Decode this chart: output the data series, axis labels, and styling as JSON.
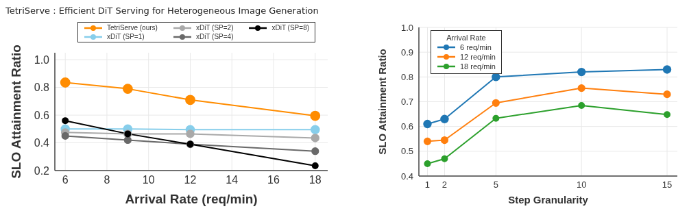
{
  "chart_data": [
    {
      "type": "line",
      "title": "TetriServe : Efficient DiT Serving for Heterogeneous Image Generation",
      "xlabel": "Arrival Rate (req/min)",
      "ylabel": "SLO Attainment Ratio",
      "x": [
        6,
        9,
        12,
        18
      ],
      "xlim": [
        5.5,
        18.6
      ],
      "xticks": [
        6,
        8,
        10,
        12,
        14,
        16,
        18
      ],
      "ylim": [
        0.2,
        1.05
      ],
      "yticks": [
        0.2,
        0.4,
        0.6,
        0.8,
        {
          "value": 1,
          "label": "1.0"
        }
      ],
      "grid": true,
      "legend": "top",
      "marker": "circle",
      "line_style": "solid",
      "series": [
        {
          "name": "TetriServe (ours)",
          "color": "#ff8c00",
          "values": [
            0.835,
            0.79,
            0.71,
            0.595
          ]
        },
        {
          "name": "xDiT (SP=1)",
          "color": "#87ceeb",
          "values": [
            0.5,
            0.5,
            0.495,
            0.495
          ]
        },
        {
          "name": "xDiT (SP=2)",
          "color": "#a9a9a9",
          "values": [
            0.475,
            0.465,
            0.465,
            0.435
          ]
        },
        {
          "name": "xDiT (SP=4)",
          "color": "#696969",
          "values": [
            0.45,
            0.42,
            0.39,
            0.34
          ]
        },
        {
          "name": "xDiT (SP=8)",
          "color": "#000000",
          "values": [
            0.56,
            0.465,
            0.39,
            0.235
          ]
        }
      ]
    },
    {
      "type": "line",
      "xlabel": "Step Granularity",
      "ylabel": "SLO Attainment Ratio",
      "legend_title": "Arrival Rate",
      "x": [
        1,
        2,
        5,
        10,
        15
      ],
      "xlim": [
        0.5,
        15.6
      ],
      "xticks": [
        1,
        2,
        5,
        10,
        15
      ],
      "ylim": [
        0.4,
        1.0
      ],
      "yticks": [
        0.4,
        0.5,
        0.6,
        0.7,
        0.8,
        0.9,
        {
          "value": 1,
          "label": "1.0"
        }
      ],
      "grid": true,
      "legend": "top left",
      "marker": "circle",
      "line_style": "solid",
      "series": [
        {
          "name": "6 req/min",
          "color": "#1f77b4",
          "values": [
            0.61,
            0.63,
            0.8,
            0.82,
            0.83
          ]
        },
        {
          "name": "12 req/min",
          "color": "#ff7f0e",
          "values": [
            0.54,
            0.545,
            0.695,
            0.755,
            0.73
          ]
        },
        {
          "name": "18 req/min",
          "color": "#2ca02c",
          "values": [
            0.45,
            0.47,
            0.633,
            0.685,
            0.648
          ]
        }
      ]
    }
  ]
}
